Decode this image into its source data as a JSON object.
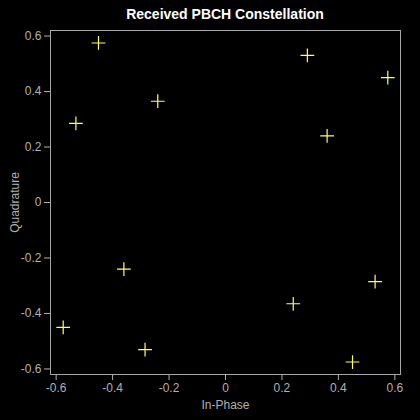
{
  "chart_data": {
    "type": "scatter",
    "title": "Received PBCH Constellation",
    "x_label": "In-Phase",
    "y_label": "Quadrature",
    "x": [
      -0.45,
      0.29,
      0.575,
      -0.53,
      -0.24,
      0.36,
      -0.36,
      -0.575,
      -0.285,
      0.24,
      0.53,
      0.45
    ],
    "values": [
      0.575,
      0.53,
      0.45,
      0.285,
      0.365,
      0.24,
      -0.24,
      -0.45,
      -0.53,
      -0.365,
      -0.285,
      -0.575
    ],
    "xlim": [
      -0.62,
      0.62
    ],
    "ylim": [
      -0.62,
      0.62
    ],
    "xticks": [
      -0.6,
      -0.4,
      -0.2,
      0,
      0.2,
      0.4,
      0.6
    ],
    "yticks": [
      -0.6,
      -0.4,
      -0.2,
      0,
      0.2,
      0.4,
      0.6
    ],
    "color": "#ffff66",
    "marker": "plus",
    "grid": false
  }
}
